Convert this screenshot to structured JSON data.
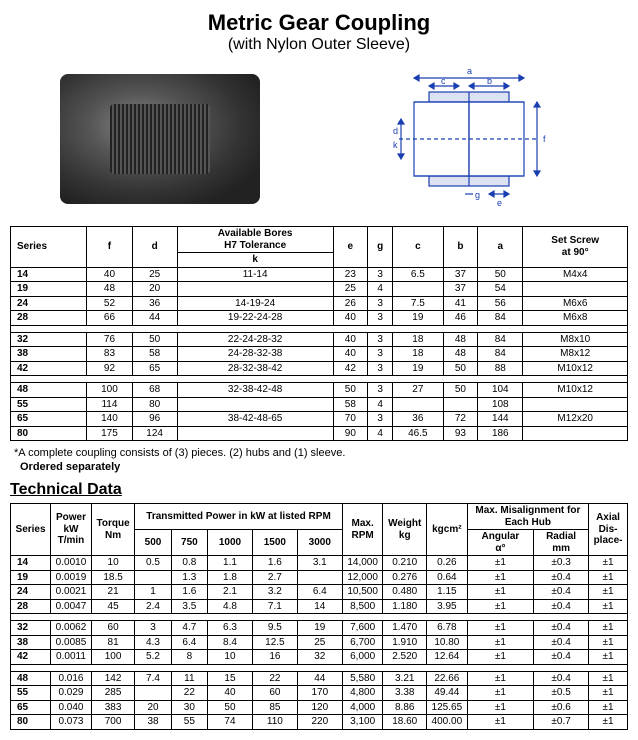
{
  "title": "Metric Gear Coupling",
  "subtitle": "(with Nylon Outer Sleeve)",
  "diagram_labels": [
    "a",
    "b",
    "c",
    "d",
    "e",
    "f",
    "g",
    "k"
  ],
  "spec_headers": {
    "series": "Series",
    "f": "f",
    "d": "d",
    "bores": "Available Bores\nH7 Tolerance",
    "k": "k",
    "e": "e",
    "g": "g",
    "c": "c",
    "b": "b",
    "a": "a",
    "set": "Set Screw\nat 90°"
  },
  "spec_rows": [
    [
      "14",
      "40",
      "25",
      "11-14",
      "23",
      "3",
      "6.5",
      "37",
      "50",
      "M4x4"
    ],
    [
      "19",
      "48",
      "20",
      "",
      "25",
      "4",
      "",
      "37",
      "54",
      ""
    ],
    [
      "24",
      "52",
      "36",
      "14-19-24",
      "26",
      "3",
      "7.5",
      "41",
      "56",
      "M6x6"
    ],
    [
      "28",
      "66",
      "44",
      "19-22-24-28",
      "40",
      "3",
      "19",
      "46",
      "84",
      "M6x8"
    ],
    [
      "32",
      "76",
      "50",
      "22-24-28-32",
      "40",
      "3",
      "18",
      "48",
      "84",
      "M8x10"
    ],
    [
      "38",
      "83",
      "58",
      "24-28-32-38",
      "40",
      "3",
      "18",
      "48",
      "84",
      "M8x12"
    ],
    [
      "42",
      "92",
      "65",
      "28-32-38-42",
      "42",
      "3",
      "19",
      "50",
      "88",
      "M10x12"
    ],
    [
      "48",
      "100",
      "68",
      "32-38-42-48",
      "50",
      "3",
      "27",
      "50",
      "104",
      "M10x12"
    ],
    [
      "55",
      "114",
      "80",
      "",
      "58",
      "4",
      "",
      "",
      "108",
      ""
    ],
    [
      "65",
      "140",
      "96",
      "38-42-48-65",
      "70",
      "3",
      "36",
      "72",
      "144",
      "M12x20"
    ],
    [
      "80",
      "175",
      "124",
      "",
      "90",
      "4",
      "46.5",
      "93",
      "186",
      ""
    ]
  ],
  "spec_group_breaks": [
    4,
    7
  ],
  "note_star": "*A complete coupling consists of (3) pieces. (2) hubs and (1) sleeve.",
  "note_order": "Ordered separately",
  "tech_title": "Technical Data",
  "tech_headers": {
    "series": "Series",
    "power": "Power\nkW\nT/min",
    "torque": "Torque\nNm",
    "trans": "Transmitted Power in kW at listed RPM",
    "r500": "500",
    "r750": "750",
    "r1000": "1000",
    "r1500": "1500",
    "r3000": "3000",
    "maxrpm": "Max.\nRPM",
    "weight": "Weight\nkg",
    "kgcm2": "kgcm²",
    "misal": "Max. Misalignment for\nEach Hub",
    "ang": "Angular\nα°",
    "rad": "Radial\nmm",
    "axial": "Axial\nDis-\nplace-"
  },
  "tech_rows": [
    [
      "14",
      "0.0010",
      "10",
      "0.5",
      "0.8",
      "1.1",
      "1.6",
      "3.1",
      "14,000",
      "0.210",
      "0.26",
      "±1",
      "±0.3",
      "±1"
    ],
    [
      "19",
      "0.0019",
      "18.5",
      "",
      "1.3",
      "1.8",
      "2.7",
      "",
      "12,000",
      "0.276",
      "0.64",
      "±1",
      "±0.4",
      "±1"
    ],
    [
      "24",
      "0.0021",
      "21",
      "1",
      "1.6",
      "2.1",
      "3.2",
      "6.4",
      "10,500",
      "0.480",
      "1.15",
      "±1",
      "±0.4",
      "±1"
    ],
    [
      "28",
      "0.0047",
      "45",
      "2.4",
      "3.5",
      "4.8",
      "7.1",
      "14",
      "8,500",
      "1.180",
      "3.95",
      "±1",
      "±0.4",
      "±1"
    ],
    [
      "32",
      "0.0062",
      "60",
      "3",
      "4.7",
      "6.3",
      "9.5",
      "19",
      "7,600",
      "1.470",
      "6.78",
      "±1",
      "±0.4",
      "±1"
    ],
    [
      "38",
      "0.0085",
      "81",
      "4.3",
      "6.4",
      "8.4",
      "12.5",
      "25",
      "6,700",
      "1.910",
      "10.80",
      "±1",
      "±0.4",
      "±1"
    ],
    [
      "42",
      "0.0011",
      "100",
      "5.2",
      "8",
      "10",
      "16",
      "32",
      "6,000",
      "2.520",
      "12.64",
      "±1",
      "±0.4",
      "±1"
    ],
    [
      "48",
      "0.016",
      "142",
      "7.4",
      "11",
      "15",
      "22",
      "44",
      "5,580",
      "3.21",
      "22.66",
      "±1",
      "±0.4",
      "±1"
    ],
    [
      "55",
      "0.029",
      "285",
      "",
      "22",
      "40",
      "60",
      "170",
      "4,800",
      "3.38",
      "49.44",
      "±1",
      "±0.5",
      "±1"
    ],
    [
      "65",
      "0.040",
      "383",
      "20",
      "30",
      "50",
      "85",
      "120",
      "4,000",
      "8.86",
      "125.65",
      "±1",
      "±0.6",
      "±1"
    ],
    [
      "80",
      "0.073",
      "700",
      "38",
      "55",
      "74",
      "110",
      "220",
      "3,100",
      "18.60",
      "400.00",
      "±1",
      "±0.7",
      "±1"
    ]
  ],
  "tech_group_breaks": [
    4,
    7
  ],
  "colors": {
    "line": "#1a3fb0"
  }
}
